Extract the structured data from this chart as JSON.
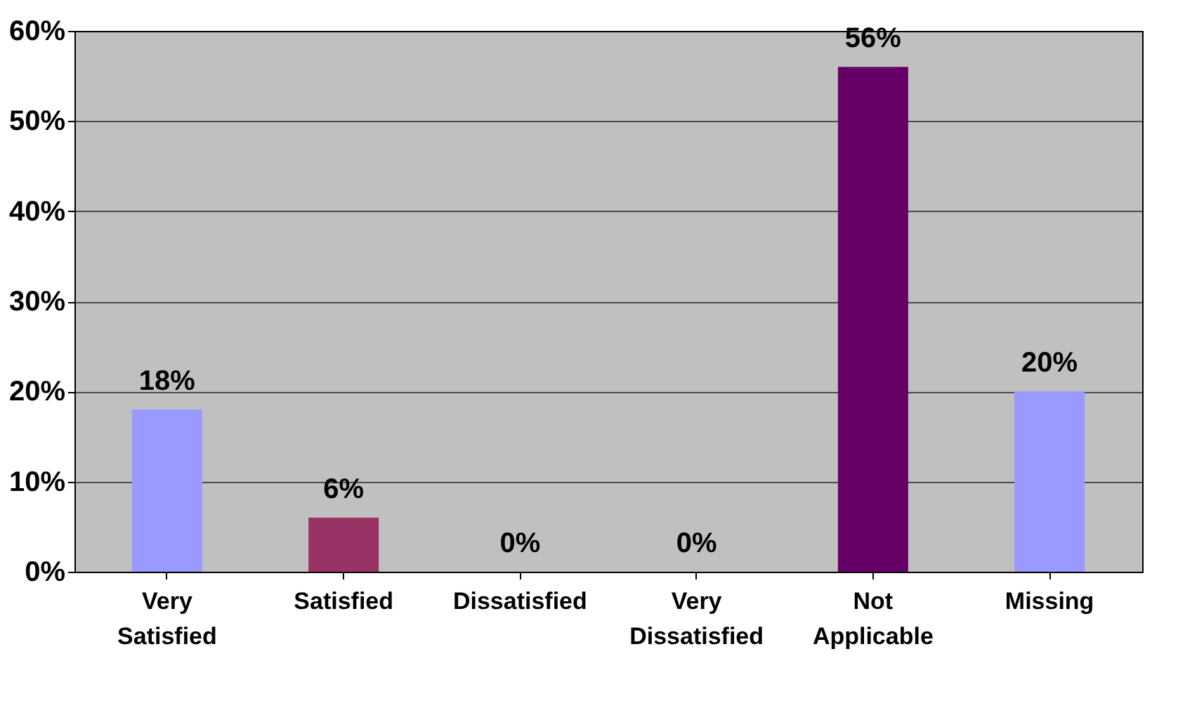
{
  "chart_data": {
    "type": "bar",
    "categories": [
      "Very Satisfied",
      "Satisfied",
      "Dissatisfied",
      "Very Dissatisfied",
      "Not Applicable",
      "Missing"
    ],
    "values": [
      18,
      6,
      0,
      0,
      56,
      20
    ],
    "colors": [
      "#9999ff",
      "#993366",
      "#ffffcc",
      "#ccffff",
      "#660066",
      "#9999ff"
    ],
    "value_labels": [
      "18%",
      "6%",
      "0%",
      "0%",
      "56%",
      "20%"
    ],
    "ylim": [
      0,
      60
    ],
    "yticks": [
      {
        "value": 0,
        "label": "0%"
      },
      {
        "value": 10,
        "label": "10%"
      },
      {
        "value": 20,
        "label": "20%"
      },
      {
        "value": 30,
        "label": "30%"
      },
      {
        "value": 40,
        "label": "40%"
      },
      {
        "value": 50,
        "label": "50%"
      },
      {
        "value": 60,
        "label": "60%"
      }
    ],
    "grid": "y"
  }
}
